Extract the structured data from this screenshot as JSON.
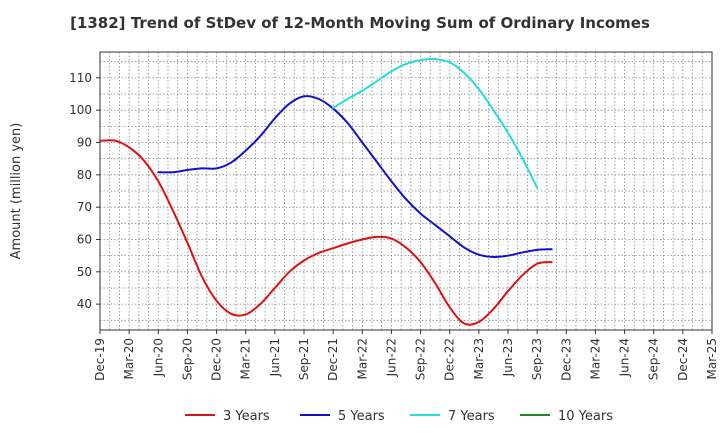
{
  "chart_data": {
    "type": "line",
    "title": "[1382]  Trend of StDev of 12-Month Moving Sum of Ordinary Incomes",
    "xlabel": "",
    "ylabel": "Amount (million yen)",
    "ylim": [
      32,
      118
    ],
    "yticks": [
      40,
      50,
      60,
      70,
      80,
      90,
      100,
      110
    ],
    "x_tick_labels": [
      "Dec-19",
      "Mar-20",
      "Jun-20",
      "Sep-20",
      "Dec-20",
      "Mar-21",
      "Jun-21",
      "Sep-21",
      "Dec-21",
      "Mar-22",
      "Jun-22",
      "Sep-22",
      "Dec-22",
      "Mar-23",
      "Jun-23",
      "Sep-23",
      "Dec-23",
      "Mar-24",
      "Jun-24",
      "Sep-24",
      "Dec-24",
      "Mar-25"
    ],
    "grid": true,
    "legend_position": "bottom",
    "series": [
      {
        "name": "3 Years",
        "color": "#dd1111",
        "points": [
          [
            0,
            90.5
          ],
          [
            0.5,
            90.6
          ],
          [
            1,
            88.5
          ],
          [
            1.5,
            84.5
          ],
          [
            2,
            78
          ],
          [
            2.5,
            69
          ],
          [
            3,
            59
          ],
          [
            3.5,
            48.5
          ],
          [
            4,
            41
          ],
          [
            4.5,
            37
          ],
          [
            5,
            36.8
          ],
          [
            5.5,
            40
          ],
          [
            6,
            45
          ],
          [
            6.5,
            50
          ],
          [
            7,
            53.5
          ],
          [
            7.5,
            55.8
          ],
          [
            8,
            57.3
          ],
          [
            8.5,
            58.8
          ],
          [
            9,
            60
          ],
          [
            9.5,
            60.8
          ],
          [
            10,
            60.3
          ],
          [
            10.5,
            57.5
          ],
          [
            11,
            53
          ],
          [
            11.5,
            46.5
          ],
          [
            12,
            39
          ],
          [
            12.5,
            34
          ],
          [
            13,
            34.5
          ],
          [
            13.5,
            38.5
          ],
          [
            14,
            44
          ],
          [
            14.5,
            49
          ],
          [
            15,
            52.5
          ],
          [
            15.5,
            53
          ]
        ]
      },
      {
        "name": "5 Years",
        "color": "#1111cc",
        "points": [
          [
            2,
            80.8
          ],
          [
            2.5,
            80.8
          ],
          [
            3,
            81.5
          ],
          [
            3.5,
            82
          ],
          [
            4,
            82
          ],
          [
            4.5,
            83.8
          ],
          [
            5,
            87.5
          ],
          [
            5.5,
            92
          ],
          [
            6,
            97.5
          ],
          [
            6.5,
            102
          ],
          [
            7,
            104.3
          ],
          [
            7.5,
            103.5
          ],
          [
            8,
            100.5
          ],
          [
            8.5,
            96
          ],
          [
            9,
            90
          ],
          [
            9.5,
            84
          ],
          [
            10,
            78
          ],
          [
            10.5,
            72.5
          ],
          [
            11,
            68
          ],
          [
            11.5,
            64.5
          ],
          [
            12,
            61
          ],
          [
            12.5,
            57.5
          ],
          [
            13,
            55.3
          ],
          [
            13.5,
            54.6
          ],
          [
            14,
            55
          ],
          [
            14.5,
            56
          ],
          [
            15,
            56.8
          ],
          [
            15.5,
            57
          ]
        ]
      },
      {
        "name": "7 Years",
        "color": "#22dddd",
        "points": [
          [
            8,
            100.7
          ],
          [
            8.5,
            103.5
          ],
          [
            9,
            106
          ],
          [
            9.5,
            109
          ],
          [
            10,
            112
          ],
          [
            10.5,
            114.3
          ],
          [
            11,
            115.5
          ],
          [
            11.5,
            115.8
          ],
          [
            12,
            114.8
          ],
          [
            12.5,
            111.5
          ],
          [
            13,
            106.5
          ],
          [
            13.5,
            100
          ],
          [
            14,
            93
          ],
          [
            14.5,
            85
          ],
          [
            15,
            76
          ]
        ]
      },
      {
        "name": "10 Years",
        "color": "#228822",
        "points": []
      }
    ]
  }
}
